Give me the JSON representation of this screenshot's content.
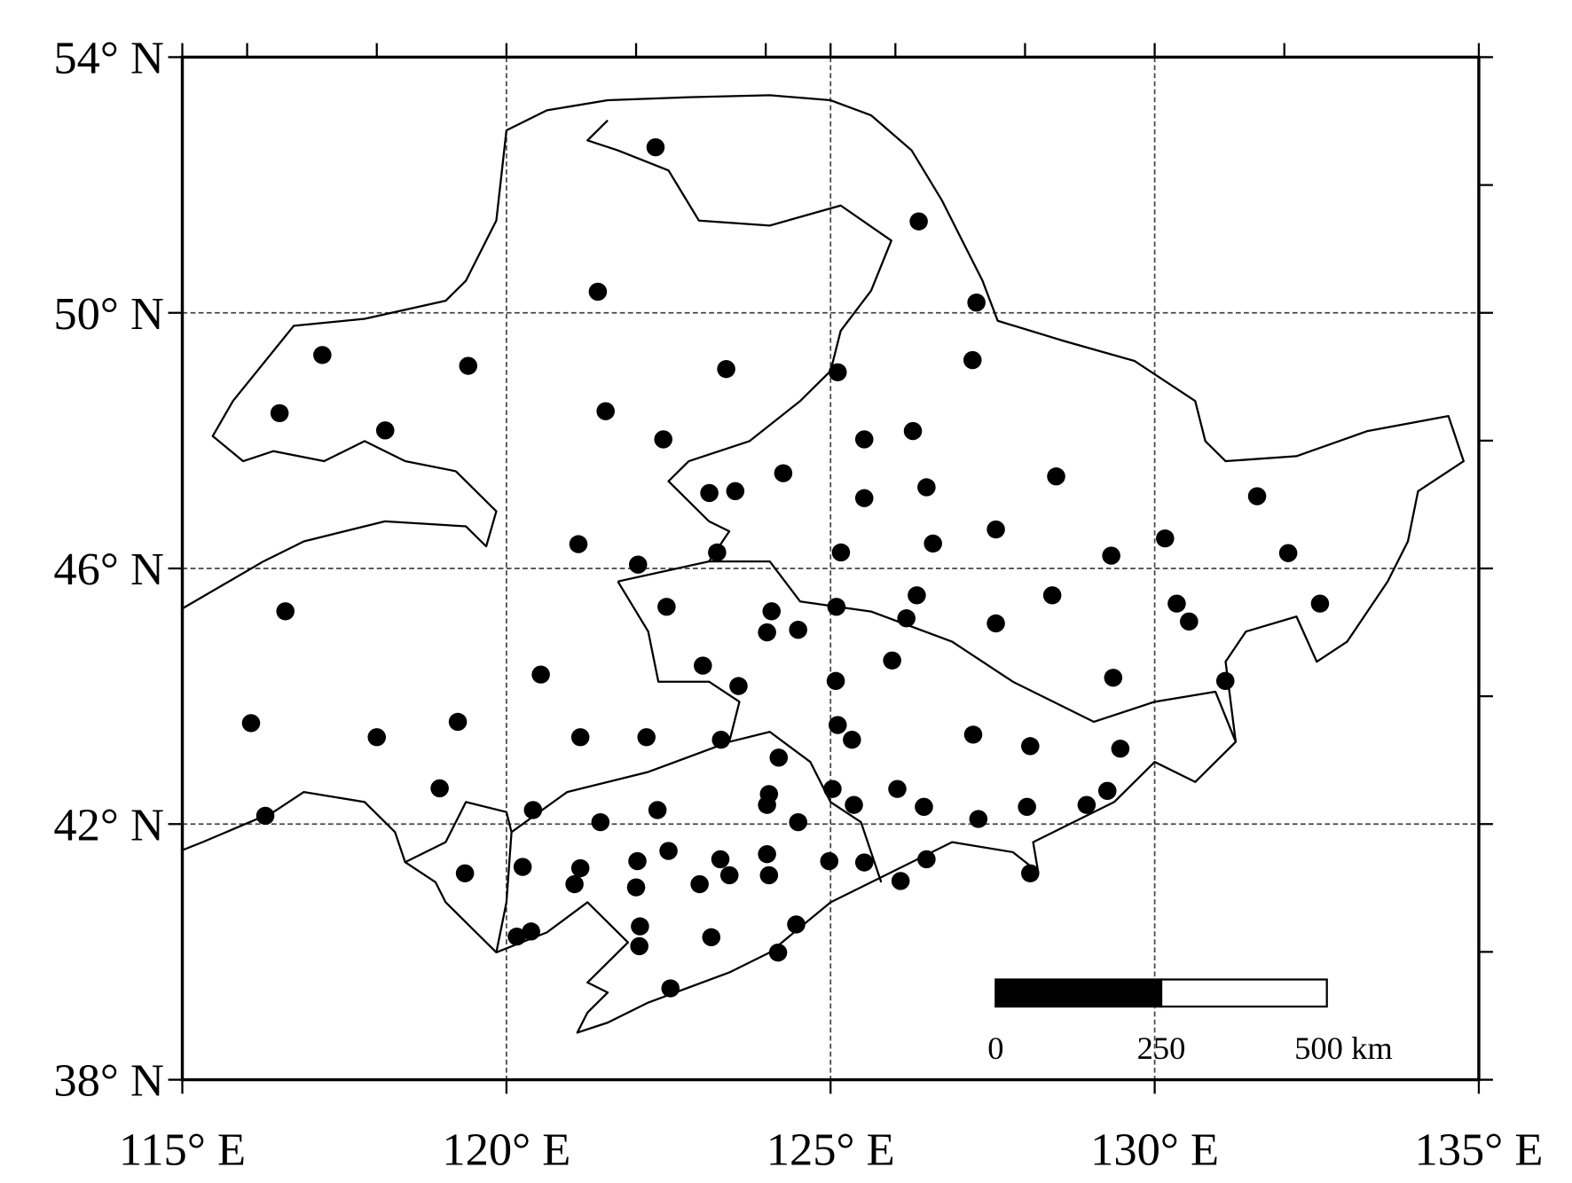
{
  "map": {
    "xlim": [
      115,
      135
    ],
    "ylim": [
      38,
      54
    ],
    "xticks": [
      {
        "value": 115,
        "label": "115° E"
      },
      {
        "value": 120,
        "label": "120° E"
      },
      {
        "value": 125,
        "label": "125° E"
      },
      {
        "value": 130,
        "label": "130° E"
      },
      {
        "value": 135,
        "label": "135° E"
      }
    ],
    "yticks": [
      {
        "value": 38,
        "label": "38° N"
      },
      {
        "value": 42,
        "label": "42° N"
      },
      {
        "value": 46,
        "label": "46° N"
      },
      {
        "value": 50,
        "label": "50° N"
      },
      {
        "value": 54,
        "label": "54° N"
      }
    ],
    "top_minor_ticks": [
      116,
      118,
      122,
      124,
      126,
      128,
      132
    ],
    "right_minor_ticks": [
      40,
      44,
      48,
      52
    ],
    "grid": true,
    "point_color": "#000000",
    "stations": [
      [
        122.3,
        52.59
      ],
      [
        126.36,
        51.43
      ],
      [
        121.41,
        50.33
      ],
      [
        127.25,
        50.16
      ],
      [
        117.16,
        49.34
      ],
      [
        119.41,
        49.17
      ],
      [
        123.39,
        49.12
      ],
      [
        127.19,
        49.26
      ],
      [
        125.11,
        49.07
      ],
      [
        116.5,
        48.43
      ],
      [
        121.53,
        48.46
      ],
      [
        118.13,
        48.16
      ],
      [
        122.42,
        48.02
      ],
      [
        125.52,
        48.02
      ],
      [
        126.27,
        48.15
      ],
      [
        124.27,
        47.49
      ],
      [
        128.48,
        47.44
      ],
      [
        123.13,
        47.18
      ],
      [
        123.53,
        47.21
      ],
      [
        125.52,
        47.1
      ],
      [
        126.48,
        47.27
      ],
      [
        131.58,
        47.13
      ],
      [
        127.55,
        46.61
      ],
      [
        126.58,
        46.39
      ],
      [
        121.11,
        46.38
      ],
      [
        130.16,
        46.47
      ],
      [
        123.25,
        46.25
      ],
      [
        125.16,
        46.25
      ],
      [
        129.33,
        46.2
      ],
      [
        132.06,
        46.24
      ],
      [
        122.03,
        46.06
      ],
      [
        126.33,
        45.58
      ],
      [
        128.42,
        45.58
      ],
      [
        130.34,
        45.45
      ],
      [
        122.47,
        45.4
      ],
      [
        116.59,
        45.33
      ],
      [
        124.09,
        45.33
      ],
      [
        125.09,
        45.4
      ],
      [
        126.17,
        45.22
      ],
      [
        130.53,
        45.17
      ],
      [
        132.55,
        45.45
      ],
      [
        124.02,
        45.0
      ],
      [
        124.5,
        45.04
      ],
      [
        127.55,
        45.14
      ],
      [
        123.03,
        44.48
      ],
      [
        125.95,
        44.56
      ],
      [
        120.53,
        44.34
      ],
      [
        123.58,
        44.16
      ],
      [
        125.08,
        44.24
      ],
      [
        129.36,
        44.29
      ],
      [
        131.09,
        44.24
      ],
      [
        116.06,
        43.58
      ],
      [
        119.25,
        43.6
      ],
      [
        118.0,
        43.36
      ],
      [
        121.14,
        43.36
      ],
      [
        122.16,
        43.36
      ],
      [
        123.31,
        43.32
      ],
      [
        125.11,
        43.55
      ],
      [
        125.33,
        43.32
      ],
      [
        127.2,
        43.4
      ],
      [
        128.08,
        43.22
      ],
      [
        129.47,
        43.18
      ],
      [
        124.2,
        43.04
      ],
      [
        118.97,
        42.56
      ],
      [
        120.41,
        42.22
      ],
      [
        122.33,
        42.22
      ],
      [
        124.05,
        42.47
      ],
      [
        124.02,
        42.3
      ],
      [
        125.03,
        42.55
      ],
      [
        125.36,
        42.3
      ],
      [
        126.03,
        42.55
      ],
      [
        126.44,
        42.27
      ],
      [
        128.03,
        42.27
      ],
      [
        128.95,
        42.3
      ],
      [
        129.27,
        42.52
      ],
      [
        116.28,
        42.13
      ],
      [
        121.45,
        42.03
      ],
      [
        124.5,
        42.03
      ],
      [
        127.28,
        42.08
      ],
      [
        119.36,
        41.23
      ],
      [
        120.25,
        41.33
      ],
      [
        121.14,
        41.31
      ],
      [
        122.02,
        41.42
      ],
      [
        122.5,
        41.58
      ],
      [
        123.3,
        41.45
      ],
      [
        123.44,
        41.2
      ],
      [
        124.02,
        41.53
      ],
      [
        124.05,
        41.2
      ],
      [
        124.98,
        41.42
      ],
      [
        125.52,
        41.4
      ],
      [
        126.48,
        41.45
      ],
      [
        128.08,
        41.23
      ],
      [
        121.05,
        41.06
      ],
      [
        122.0,
        41.01
      ],
      [
        122.98,
        41.06
      ],
      [
        126.08,
        41.11
      ],
      [
        122.06,
        40.4
      ],
      [
        124.47,
        40.43
      ],
      [
        120.38,
        40.32
      ],
      [
        120.16,
        40.24
      ],
      [
        122.05,
        40.09
      ],
      [
        123.16,
        40.23
      ],
      [
        124.19,
        39.99
      ],
      [
        122.53,
        39.43
      ]
    ],
    "scale_bar": {
      "ticks": [
        {
          "value": 0,
          "label": "0"
        },
        {
          "value": 250,
          "label": "250"
        },
        {
          "value": 500,
          "label": "500 km"
        }
      ]
    }
  }
}
